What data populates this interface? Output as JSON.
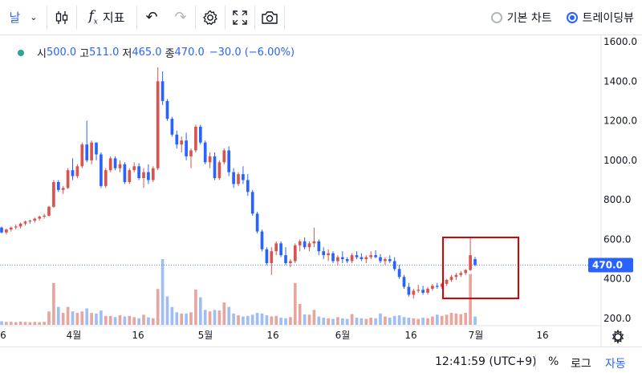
{
  "toolbar": {
    "interval_label": "날",
    "interval_arrow": "⌄",
    "indicators_label": "지표",
    "undo": "↶",
    "redo": "↷",
    "settings": "⚙",
    "fullscreen": "⛶",
    "camera": "📷",
    "basic_chart_label": "기본 차트",
    "tradingview_label": "트레이딩뷰",
    "selected_view": "tradingview"
  },
  "ohlc": {
    "open_label": "시",
    "open": "500.0",
    "high_label": "고",
    "high": "511.0",
    "low_label": "저",
    "low": "465.0",
    "close_label": "종",
    "close": "470.0",
    "change": "−30.0 (−6.00%)"
  },
  "price_axis": {
    "ticks": [
      "1600.0",
      "1400.0",
      "1200.0",
      "1000.0",
      "800.0",
      "600.0",
      "400.0",
      "200.0"
    ],
    "current_price": "470.0"
  },
  "time_axis": {
    "ticks": [
      "6",
      "4월",
      "16",
      "5월",
      "16",
      "6월",
      "16",
      "7월",
      "16"
    ]
  },
  "footer": {
    "time": "12:41:59 (UTC+9)",
    "percent": "%",
    "log": "로그",
    "auto": "자동"
  },
  "colors": {
    "up": "#d9534f",
    "down": "#2962ff",
    "accent": "#2962ff",
    "highlight_box": "#e00000"
  },
  "chart_data": {
    "type": "candlestick",
    "price_range": [
      170,
      1650
    ],
    "candles": [
      [
        660,
        665,
        630,
        635,
        12
      ],
      [
        635,
        655,
        625,
        650,
        10
      ],
      [
        650,
        665,
        640,
        660,
        10
      ],
      [
        660,
        675,
        650,
        665,
        9
      ],
      [
        665,
        685,
        655,
        680,
        11
      ],
      [
        680,
        695,
        670,
        690,
        10
      ],
      [
        690,
        700,
        680,
        695,
        9
      ],
      [
        695,
        710,
        685,
        705,
        10
      ],
      [
        705,
        720,
        695,
        715,
        9
      ],
      [
        715,
        730,
        705,
        720,
        10
      ],
      [
        720,
        770,
        715,
        765,
        45
      ],
      [
        765,
        900,
        760,
        890,
        140
      ],
      [
        890,
        900,
        840,
        850,
        60
      ],
      [
        850,
        870,
        830,
        860,
        40
      ],
      [
        860,
        960,
        855,
        950,
        60
      ],
      [
        950,
        1010,
        900,
        920,
        45
      ],
      [
        920,
        980,
        910,
        970,
        40
      ],
      [
        970,
        1090,
        960,
        1080,
        45
      ],
      [
        1080,
        1200,
        990,
        1000,
        55
      ],
      [
        1000,
        1100,
        980,
        1090,
        40
      ],
      [
        1090,
        1090,
        1000,
        1030,
        38
      ],
      [
        1030,
        1040,
        860,
        870,
        48
      ],
      [
        870,
        960,
        860,
        950,
        30
      ],
      [
        950,
        1020,
        940,
        1010,
        30
      ],
      [
        1010,
        1020,
        950,
        960,
        26
      ],
      [
        960,
        1000,
        940,
        980,
        32
      ],
      [
        980,
        990,
        880,
        890,
        28
      ],
      [
        890,
        960,
        880,
        950,
        30
      ],
      [
        950,
        990,
        940,
        970,
        26
      ],
      [
        970,
        985,
        900,
        910,
        22
      ],
      [
        910,
        960,
        860,
        940,
        34
      ],
      [
        940,
        980,
        880,
        900,
        25
      ],
      [
        900,
        970,
        890,
        960,
        22
      ],
      [
        960,
        1470,
        950,
        1400,
        120
      ],
      [
        1400,
        1450,
        1280,
        1300,
        220
      ],
      [
        1300,
        1310,
        1200,
        1210,
        95
      ],
      [
        1210,
        1220,
        1120,
        1130,
        60
      ],
      [
        1130,
        1150,
        1060,
        1080,
        42
      ],
      [
        1080,
        1120,
        1040,
        1100,
        38
      ],
      [
        1100,
        1140,
        1000,
        1020,
        38
      ],
      [
        1020,
        1060,
        960,
        1050,
        42
      ],
      [
        1050,
        1180,
        1040,
        1170,
        118
      ],
      [
        1170,
        1180,
        1080,
        1090,
        92
      ],
      [
        1090,
        1100,
        980,
        990,
        50
      ],
      [
        990,
        1040,
        960,
        1020,
        45
      ],
      [
        1020,
        1040,
        900,
        910,
        50
      ],
      [
        910,
        1000,
        900,
        990,
        48
      ],
      [
        990,
        1060,
        980,
        1050,
        75
      ],
      [
        1050,
        1070,
        920,
        940,
        60
      ],
      [
        940,
        960,
        860,
        880,
        38
      ],
      [
        880,
        940,
        870,
        930,
        32
      ],
      [
        930,
        970,
        880,
        900,
        28
      ],
      [
        900,
        930,
        820,
        840,
        30
      ],
      [
        840,
        850,
        720,
        730,
        34
      ],
      [
        730,
        740,
        630,
        640,
        40
      ],
      [
        640,
        650,
        540,
        550,
        38
      ],
      [
        550,
        560,
        470,
        480,
        32
      ],
      [
        480,
        560,
        420,
        540,
        28
      ],
      [
        540,
        590,
        520,
        580,
        30
      ],
      [
        580,
        590,
        510,
        520,
        24
      ],
      [
        520,
        560,
        470,
        480,
        22
      ],
      [
        480,
        500,
        460,
        490,
        26
      ],
      [
        490,
        580,
        480,
        570,
        140
      ],
      [
        570,
        600,
        540,
        590,
        70
      ],
      [
        590,
        610,
        550,
        560,
        35
      ],
      [
        560,
        590,
        540,
        580,
        34
      ],
      [
        580,
        660,
        560,
        590,
        50
      ],
      [
        590,
        600,
        520,
        540,
        28
      ],
      [
        540,
        560,
        500,
        520,
        24
      ],
      [
        520,
        550,
        490,
        530,
        22
      ],
      [
        530,
        540,
        480,
        490,
        20
      ],
      [
        490,
        520,
        470,
        510,
        26
      ],
      [
        510,
        540,
        480,
        500,
        22
      ],
      [
        500,
        510,
        480,
        490,
        20
      ],
      [
        490,
        530,
        480,
        520,
        36
      ],
      [
        520,
        540,
        500,
        510,
        24
      ],
      [
        510,
        530,
        490,
        500,
        22
      ],
      [
        500,
        520,
        480,
        510,
        20
      ],
      [
        510,
        540,
        500,
        520,
        24
      ],
      [
        520,
        545,
        505,
        510,
        22
      ],
      [
        510,
        525,
        480,
        490,
        38
      ],
      [
        490,
        510,
        470,
        500,
        28
      ],
      [
        500,
        520,
        480,
        490,
        24
      ],
      [
        490,
        510,
        440,
        450,
        30
      ],
      [
        450,
        470,
        400,
        410,
        32
      ],
      [
        410,
        420,
        350,
        360,
        26
      ],
      [
        360,
        380,
        310,
        320,
        24
      ],
      [
        320,
        350,
        300,
        340,
        22
      ],
      [
        340,
        370,
        330,
        345,
        20
      ],
      [
        345,
        365,
        320,
        330,
        24
      ],
      [
        330,
        360,
        320,
        350,
        22
      ],
      [
        350,
        375,
        340,
        365,
        28
      ],
      [
        365,
        380,
        350,
        360,
        34
      ],
      [
        360,
        380,
        350,
        375,
        30
      ],
      [
        375,
        400,
        365,
        395,
        34
      ],
      [
        395,
        420,
        385,
        410,
        40
      ],
      [
        410,
        430,
        395,
        420,
        38
      ],
      [
        420,
        440,
        410,
        430,
        36
      ],
      [
        430,
        450,
        420,
        445,
        40
      ],
      [
        445,
        610,
        440,
        520,
        170
      ],
      [
        500,
        511,
        465,
        470,
        28
      ]
    ]
  }
}
